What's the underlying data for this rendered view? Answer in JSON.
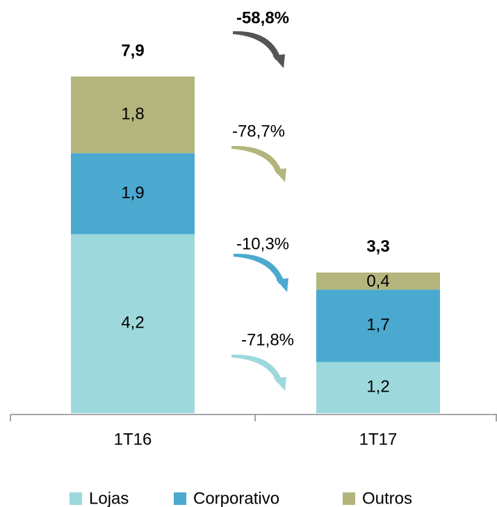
{
  "chart_data": {
    "type": "stacked_bar",
    "categories": [
      "1T16",
      "1T17"
    ],
    "series": [
      {
        "name": "Lojas",
        "color": "#9dd9dc",
        "values": [
          4.2,
          1.2
        ],
        "value_labels": [
          "4,2",
          "1,2"
        ]
      },
      {
        "name": "Corporativo",
        "color": "#4ba9d0",
        "values": [
          1.9,
          1.7
        ],
        "value_labels": [
          "1,9",
          "1,7"
        ]
      },
      {
        "name": "Outros",
        "color": "#b3b57c",
        "values": [
          1.8,
          0.4
        ],
        "value_labels": [
          "1,8",
          "0,4"
        ]
      }
    ],
    "totals": [
      7.9,
      3.3
    ],
    "total_labels": [
      "7,9",
      "3,3"
    ],
    "annotations": [
      {
        "value": -58.8,
        "label": "-58,8%",
        "color": "#555555",
        "bold": true
      },
      {
        "value": -78.7,
        "label": "-78,7%",
        "color": "#b3b57c",
        "bold": false
      },
      {
        "value": -10.3,
        "label": "-10,3%",
        "color": "#4ba9d0",
        "bold": false
      },
      {
        "value": -71.8,
        "label": "-71,8%",
        "color": "#9dd9dc",
        "bold": false
      }
    ],
    "legend": "bottom"
  }
}
